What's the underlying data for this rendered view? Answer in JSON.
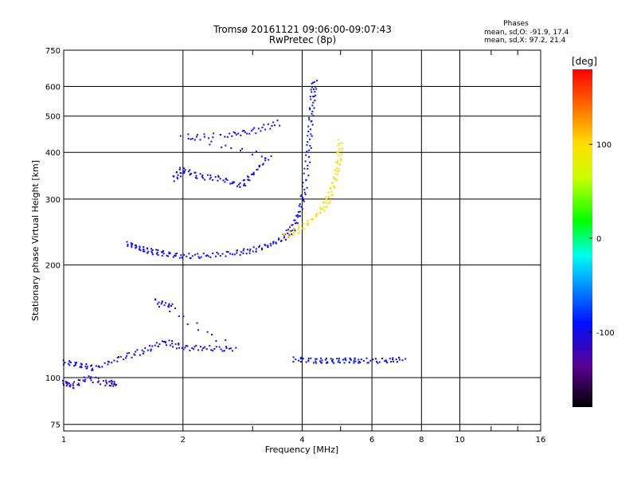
{
  "chart_data": {
    "type": "scatter",
    "title": "Tromsø 20161121 09:06:00-09:07:43",
    "subtitle": "RwPretec (8p)",
    "stats": {
      "heading": "Phases",
      "line1": "mean, sd,O: -91.9, 17.4",
      "line2": "mean, sd,X:  97.2, 21.4"
    },
    "xlabel": "Frequency [MHz]",
    "ylabel": "Stationary phase Virtual Height [km]",
    "x_scale": "log",
    "y_scale": "log",
    "xlim": [
      1,
      16
    ],
    "ylim": [
      72,
      750
    ],
    "x_ticks": [
      1,
      2,
      4,
      6,
      8,
      10,
      16
    ],
    "x_tick_labels": [
      "1",
      "2",
      "4",
      "6",
      "8",
      "10",
      "16"
    ],
    "x_minor_ticks": [
      3,
      5,
      12,
      14
    ],
    "y_ticks": [
      75,
      100,
      200,
      300,
      400,
      500,
      600,
      750
    ],
    "y_tick_labels": [
      "75",
      "100",
      "200",
      "300",
      "400",
      "500",
      "600",
      "750"
    ],
    "grid": true,
    "colorbar": {
      "label": "[deg]",
      "range": [
        -180,
        180
      ],
      "ticks": [
        100,
        0,
        -100
      ],
      "tick_labels": [
        "100",
        "0",
        "-100"
      ]
    },
    "series": [
      {
        "trace": "o-mode F-layer trace (blue)",
        "phase": -95,
        "points": [
          [
            1.45,
            228
          ],
          [
            1.55,
            222
          ],
          [
            1.65,
            218
          ],
          [
            1.8,
            214
          ],
          [
            2.0,
            211
          ],
          [
            2.3,
            212
          ],
          [
            2.7,
            215
          ],
          [
            3.0,
            219
          ],
          [
            3.3,
            226
          ],
          [
            3.6,
            236
          ],
          [
            3.8,
            252
          ],
          [
            3.95,
            278
          ],
          [
            4.05,
            320
          ],
          [
            4.15,
            400
          ],
          [
            4.2,
            480
          ],
          [
            4.25,
            560
          ],
          [
            4.3,
            620
          ]
        ]
      },
      {
        "trace": "x-mode F-layer trace (yellow/orange)",
        "phase": 100,
        "points": [
          [
            3.6,
            238
          ],
          [
            3.9,
            248
          ],
          [
            4.2,
            262
          ],
          [
            4.5,
            282
          ],
          [
            4.7,
            305
          ],
          [
            4.85,
            340
          ],
          [
            4.95,
            380
          ],
          [
            5.0,
            430
          ]
        ]
      },
      {
        "trace": "Spread F echoes",
        "phase": -100,
        "points": [
          [
            1.9,
            340
          ],
          [
            2.0,
            360
          ],
          [
            2.2,
            345
          ],
          [
            2.5,
            340
          ],
          [
            2.8,
            325
          ],
          [
            3.0,
            350
          ],
          [
            3.3,
            390
          ],
          [
            2.0,
            440
          ],
          [
            2.6,
            445
          ],
          [
            3.0,
            455
          ],
          [
            3.5,
            480
          ]
        ]
      },
      {
        "trace": "E-region echoes",
        "phase": -100,
        "points": [
          [
            1.0,
            110
          ],
          [
            1.1,
            108
          ],
          [
            1.2,
            106
          ],
          [
            1.4,
            113
          ],
          [
            1.6,
            118
          ],
          [
            1.8,
            125
          ],
          [
            2.0,
            120
          ],
          [
            2.3,
            120
          ],
          [
            2.7,
            119
          ],
          [
            1.7,
            160
          ],
          [
            1.9,
            155
          ]
        ]
      },
      {
        "trace": "Low echoes",
        "phase": -110,
        "points": [
          [
            1.0,
            97
          ],
          [
            1.05,
            95
          ],
          [
            1.15,
            100
          ],
          [
            1.3,
            96
          ],
          [
            1.35,
            97
          ]
        ]
      },
      {
        "trace": "Sporadic E echoes",
        "phase": -90,
        "points": [
          [
            3.8,
            112
          ],
          [
            4.3,
            111
          ],
          [
            4.7,
            111
          ],
          [
            5.2,
            111
          ],
          [
            5.6,
            111
          ],
          [
            6.5,
            111
          ],
          [
            7.2,
            112
          ]
        ]
      }
    ]
  }
}
